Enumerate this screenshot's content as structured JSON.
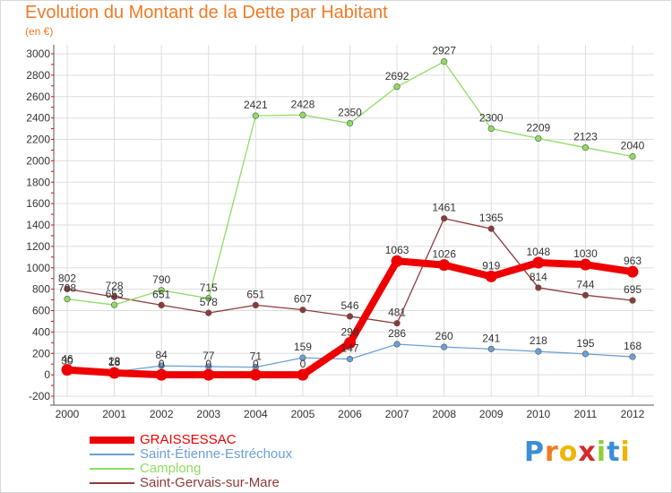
{
  "title": "Evolution du Montant de la Dette par Habitant",
  "subtitle": "(en €)",
  "logo": "Proxiti",
  "chart_data": {
    "type": "line",
    "x": [
      "2000",
      "2001",
      "2002",
      "2003",
      "2004",
      "2005",
      "2006",
      "2007",
      "2008",
      "2009",
      "2010",
      "2011",
      "2012"
    ],
    "ylim": [
      -200,
      3000
    ],
    "yticks": [
      -200,
      0,
      200,
      400,
      600,
      800,
      1000,
      1200,
      1400,
      1600,
      1800,
      2000,
      2200,
      2400,
      2600,
      2800,
      3000
    ],
    "grid": true,
    "legend": "bottom-left",
    "series": [
      {
        "name": "GRAISSESSAC",
        "color": "#ee0000",
        "values": [
          46,
          18,
          0,
          0,
          0,
          0,
          298,
          1063,
          1026,
          919,
          1048,
          1030,
          963
        ],
        "labels": [
          "46",
          "18",
          "0",
          "0",
          "0",
          "0",
          "298",
          "1063",
          "1026",
          "919",
          "1048",
          "1030",
          "963"
        ]
      },
      {
        "name": "Saint-Étienne-Estréchoux",
        "color": "#6ca0d6",
        "values": [
          30,
          28,
          84,
          77,
          71,
          159,
          147,
          286,
          260,
          241,
          218,
          195,
          168
        ],
        "labels": [
          "30",
          "28",
          "84",
          "77",
          "71",
          "159",
          "147",
          "286",
          "260",
          "241",
          "218",
          "195",
          "168"
        ]
      },
      {
        "name": "Camplong",
        "color": "#8fdc63",
        "values": [
          708,
          653,
          790,
          715,
          2421,
          2428,
          2350,
          2692,
          2927,
          2300,
          2209,
          2123,
          2040
        ],
        "labels": [
          "708",
          "653",
          "790",
          "715",
          "2421",
          "2428",
          "2350",
          "2692",
          "2927",
          "2300",
          "2209",
          "2123",
          "2040"
        ]
      },
      {
        "name": "Saint-Gervais-sur-Mare",
        "color": "#8e3a3a",
        "values": [
          802,
          728,
          651,
          578,
          651,
          607,
          546,
          481,
          1461,
          1365,
          814,
          744,
          695
        ],
        "labels": [
          "802",
          "728",
          "651",
          "578",
          "651",
          "607",
          "546",
          "481",
          "1461",
          "1365",
          "814",
          "744",
          "695"
        ]
      }
    ]
  }
}
